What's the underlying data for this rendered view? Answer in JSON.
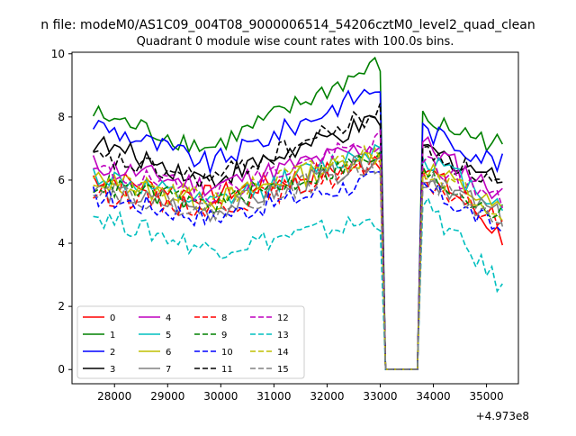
{
  "figure": {
    "suptitle": "n file: modeM0/AS1C09_004T08_9000006514_54206cztM0_level2_quad_clean",
    "title": "Quadrant 0 module wise count rates with 100.0s bins.",
    "x_offset_label": "+4.973e8"
  },
  "chart_data": {
    "type": "line",
    "title": "Quadrant 0 module wise count rates with 100.0s bins.",
    "xlabel": "",
    "ylabel": "",
    "x_offset": 497300000,
    "xlim": [
      27200,
      35600
    ],
    "ylim": [
      -0.45,
      10.05
    ],
    "xticks": [
      28000,
      29000,
      30000,
      31000,
      32000,
      33000,
      34000,
      35000
    ],
    "xtick_labels": [
      "28000",
      "29000",
      "30000",
      "31000",
      "32000",
      "33000",
      "34000",
      "35000"
    ],
    "yticks": [
      0,
      2,
      4,
      6,
      8,
      10
    ],
    "ytick_labels": [
      "0",
      "2",
      "4",
      "6",
      "8",
      "10"
    ],
    "grid": false,
    "legend_placement": "lower-left",
    "x_range": [
      27600,
      35300
    ],
    "bin_step": 100,
    "gap_range": [
      33100,
      33700
    ],
    "series": [
      {
        "name": "0",
        "color": "#ff0000",
        "dash": "solid",
        "y_start": 6.1,
        "y_mid": 5.5,
        "y_pre_gap": 6.6,
        "y_after": 6.5,
        "y_end": 4.2
      },
      {
        "name": "1",
        "color": "#008000",
        "dash": "solid",
        "y_start": 8.1,
        "y_mid": 7.0,
        "y_pre_gap": 9.6,
        "y_after": 7.9,
        "y_end": 7.1
      },
      {
        "name": "2",
        "color": "#0000ff",
        "dash": "solid",
        "y_start": 7.8,
        "y_mid": 6.5,
        "y_pre_gap": 8.9,
        "y_after": 7.6,
        "y_end": 6.5
      },
      {
        "name": "3",
        "color": "#000000",
        "dash": "solid",
        "y_start": 7.2,
        "y_mid": 6.0,
        "y_pre_gap": 7.8,
        "y_after": 7.0,
        "y_end": 6.0
      },
      {
        "name": "4",
        "color": "#bf00bf",
        "dash": "solid",
        "y_start": 6.5,
        "y_mid": 5.8,
        "y_pre_gap": 7.1,
        "y_after": 7.2,
        "y_end": 5.5
      },
      {
        "name": "5",
        "color": "#00bfbf",
        "dash": "solid",
        "y_start": 6.2,
        "y_mid": 5.2,
        "y_pre_gap": 7.0,
        "y_after": 6.8,
        "y_end": 5.2
      },
      {
        "name": "6",
        "color": "#bfbf00",
        "dash": "solid",
        "y_start": 6.0,
        "y_mid": 5.3,
        "y_pre_gap": 6.8,
        "y_after": 6.5,
        "y_end": 5.0
      },
      {
        "name": "7",
        "color": "#808080",
        "dash": "solid",
        "y_start": 5.7,
        "y_mid": 5.0,
        "y_pre_gap": 6.6,
        "y_after": 6.2,
        "y_end": 4.8
      },
      {
        "name": "8",
        "color": "#ff0000",
        "dash": "dashed",
        "y_start": 5.6,
        "y_mid": 5.1,
        "y_pre_gap": 6.4,
        "y_after": 6.0,
        "y_end": 4.7
      },
      {
        "name": "9",
        "color": "#008000",
        "dash": "dashed",
        "y_start": 5.9,
        "y_mid": 5.2,
        "y_pre_gap": 6.7,
        "y_after": 6.2,
        "y_end": 4.9
      },
      {
        "name": "10",
        "color": "#0000ff",
        "dash": "dashed",
        "y_start": 5.5,
        "y_mid": 4.8,
        "y_pre_gap": 6.0,
        "y_after": 5.8,
        "y_end": 4.4
      },
      {
        "name": "11",
        "color": "#000000",
        "dash": "dashed",
        "y_start": 6.7,
        "y_mid": 6.0,
        "y_pre_gap": 8.1,
        "y_after": 7.0,
        "y_end": 5.8
      },
      {
        "name": "12",
        "color": "#bf00bf",
        "dash": "dashed",
        "y_start": 6.3,
        "y_mid": 5.6,
        "y_pre_gap": 7.2,
        "y_after": 6.6,
        "y_end": 5.3
      },
      {
        "name": "13",
        "color": "#00bfbf",
        "dash": "dashed",
        "y_start": 4.9,
        "y_mid": 3.8,
        "y_pre_gap": 4.7,
        "y_after": 5.3,
        "y_end": 2.6
      },
      {
        "name": "14",
        "color": "#bfbf00",
        "dash": "dashed",
        "y_start": 6.0,
        "y_mid": 5.4,
        "y_pre_gap": 6.9,
        "y_after": 6.4,
        "y_end": 5.0
      },
      {
        "name": "15",
        "color": "#808080",
        "dash": "dashed",
        "y_start": 5.8,
        "y_mid": 5.0,
        "y_pre_gap": 6.5,
        "y_after": 6.1,
        "y_end": 4.6
      }
    ]
  }
}
